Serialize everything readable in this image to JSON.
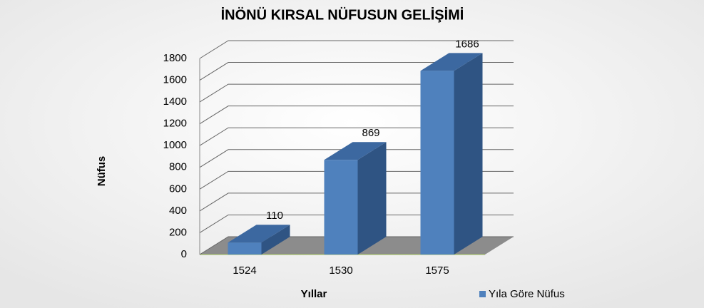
{
  "chart_data": {
    "type": "bar3d",
    "title": "İNÖNÜ KIRSAL NÜFUSUN GELİŞİMİ",
    "y_label": "Nüfus",
    "x_label": "Yıllar",
    "categories": [
      "1524",
      "1530",
      "1575"
    ],
    "series": [
      {
        "name": "Yıla Göre Nüfus",
        "color": "#4f81bd",
        "values": [
          110,
          869,
          1686
        ]
      }
    ],
    "ylim": [
      0,
      1800
    ],
    "yticks": [
      0,
      200,
      400,
      600,
      800,
      1000,
      1200,
      1400,
      1600,
      1800
    ],
    "grid": true,
    "legend": "bottom-right"
  }
}
